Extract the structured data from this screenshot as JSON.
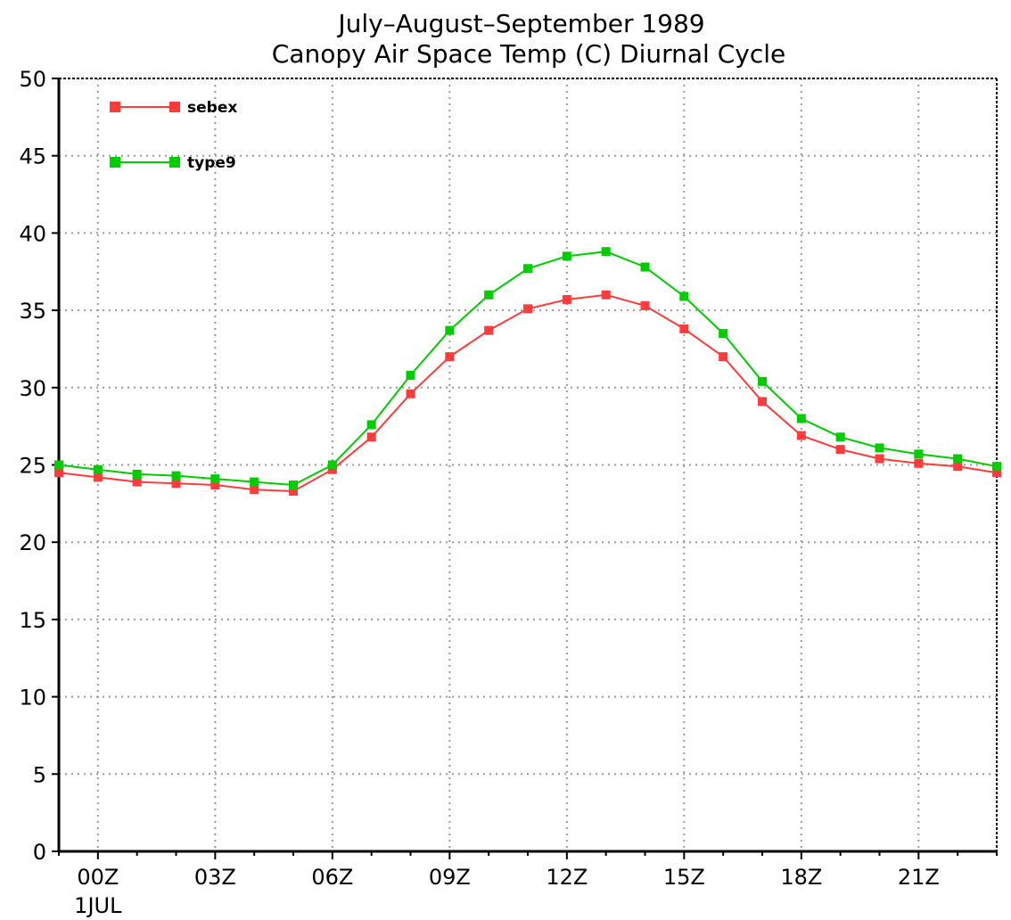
{
  "chart_data": {
    "type": "line",
    "title": "July–August–September 1989",
    "subtitle": "Canopy Air Space Temp (C) Diurnal Cycle",
    "xlabel": "",
    "ylabel": "",
    "x": [
      -1,
      0,
      1,
      2,
      3,
      4,
      5,
      6,
      7,
      8,
      9,
      10,
      11,
      12,
      13,
      14,
      15,
      16,
      17,
      18,
      19,
      20,
      21,
      22,
      23
    ],
    "xlim": [
      -1,
      23
    ],
    "ylim": [
      0,
      50
    ],
    "y_ticks": [
      0,
      5,
      10,
      15,
      20,
      25,
      30,
      35,
      40,
      45,
      50
    ],
    "y_tick_labels": [
      "0",
      "5",
      "10",
      "15",
      "20",
      "25",
      "30",
      "35",
      "40",
      "45",
      "50"
    ],
    "x_ticks": [
      0,
      3,
      6,
      9,
      12,
      15,
      18,
      21
    ],
    "x_tick_labels": [
      "00Z",
      "03Z",
      "06Z",
      "09Z",
      "12Z",
      "15Z",
      "18Z",
      "21Z"
    ],
    "x_date_label": "1JUL",
    "grid": true,
    "legend_position": "top-left",
    "series": [
      {
        "name": "sebex",
        "color": "#ff3b3b",
        "values": [
          24.5,
          24.2,
          23.9,
          23.8,
          23.7,
          23.4,
          23.3,
          24.7,
          26.8,
          29.6,
          32.0,
          33.7,
          35.1,
          35.7,
          36.0,
          35.3,
          33.8,
          32.0,
          29.1,
          26.9,
          26.0,
          25.4,
          25.1,
          24.9,
          24.5
        ]
      },
      {
        "name": "type9",
        "color": "#00cc00",
        "values": [
          25.0,
          24.7,
          24.4,
          24.3,
          24.1,
          23.9,
          23.7,
          25.0,
          27.6,
          30.8,
          33.7,
          36.0,
          37.7,
          38.5,
          38.8,
          37.8,
          35.9,
          33.5,
          30.4,
          28.0,
          26.8,
          26.1,
          25.7,
          25.4,
          24.9
        ]
      }
    ]
  }
}
